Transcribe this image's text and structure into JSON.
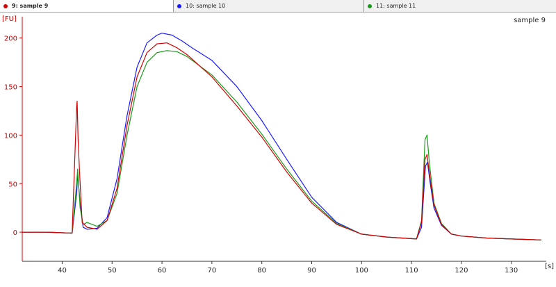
{
  "tabs": [
    {
      "label": "9: sample 9",
      "color": "#d40000",
      "active": true
    },
    {
      "label": "10: sample 10",
      "color": "#1a1aff",
      "active": false
    },
    {
      "label": "11: sample 11",
      "color": "#1a9a1a",
      "active": false
    }
  ],
  "chart_data": {
    "type": "line",
    "title": "sample 9",
    "xlabel": "[s]",
    "ylabel": "[FU]",
    "xlim": [
      32,
      137
    ],
    "ylim": [
      -30,
      222
    ],
    "xticks": [
      40,
      50,
      60,
      70,
      80,
      90,
      100,
      110,
      120,
      130
    ],
    "yticks": [
      0,
      50,
      100,
      150,
      200
    ],
    "grid": false,
    "series": [
      {
        "name": "9: sample 9",
        "color": "#d40000",
        "x": [
          32,
          37,
          42,
          42.9,
          43.0,
          43.2,
          43.5,
          44.0,
          45,
          47,
          49,
          51,
          53,
          55,
          57,
          59,
          61,
          63,
          65,
          70,
          75,
          80,
          85,
          90,
          95,
          100,
          105,
          108,
          111,
          112,
          112.7,
          113.1,
          113.6,
          114.5,
          116,
          118,
          120,
          125,
          130,
          136
        ],
        "y": [
          0,
          0,
          -1,
          130,
          135,
          95,
          60,
          10,
          5,
          3,
          12,
          45,
          110,
          160,
          185,
          194,
          195,
          190,
          183,
          160,
          130,
          98,
          62,
          30,
          8,
          -2,
          -5,
          -6,
          -7,
          10,
          75,
          80,
          60,
          28,
          8,
          -2,
          -4,
          -6,
          -7,
          -8
        ]
      },
      {
        "name": "10: sample 10",
        "color": "#1a1aff",
        "x": [
          32,
          37,
          42,
          42.9,
          43.1,
          43.6,
          44.2,
          45,
          47,
          49,
          51,
          53,
          55,
          57,
          59,
          60,
          62,
          64,
          66,
          70,
          75,
          80,
          85,
          90,
          95,
          100,
          105,
          108,
          111,
          112,
          112.8,
          113.2,
          113.7,
          114.5,
          116,
          118,
          120,
          125,
          130,
          136
        ],
        "y": [
          0,
          0,
          -1,
          40,
          60,
          30,
          5,
          3,
          4,
          15,
          55,
          120,
          170,
          195,
          203,
          205,
          203,
          197,
          190,
          177,
          150,
          115,
          75,
          36,
          10,
          -2,
          -5,
          -6,
          -7,
          5,
          68,
          72,
          52,
          25,
          7,
          -2,
          -4,
          -6,
          -7,
          -8
        ]
      },
      {
        "name": "11: sample 11",
        "color": "#1a9a1a",
        "x": [
          32,
          37,
          42,
          42.9,
          43.1,
          43.6,
          44.2,
          45,
          47,
          49,
          51,
          53,
          55,
          57,
          59,
          61,
          63,
          65,
          70,
          75,
          80,
          85,
          90,
          95,
          100,
          105,
          108,
          111,
          112,
          112.7,
          113.1,
          113.6,
          114.5,
          116,
          118,
          120,
          125,
          130,
          136
        ],
        "y": [
          0,
          0,
          -1,
          50,
          65,
          25,
          8,
          10,
          6,
          12,
          40,
          100,
          150,
          175,
          185,
          187,
          186,
          181,
          162,
          134,
          101,
          65,
          32,
          9,
          -2,
          -5,
          -6,
          -7,
          12,
          95,
          100,
          70,
          30,
          9,
          -2,
          -4,
          -6,
          -7,
          -8
        ]
      }
    ]
  }
}
